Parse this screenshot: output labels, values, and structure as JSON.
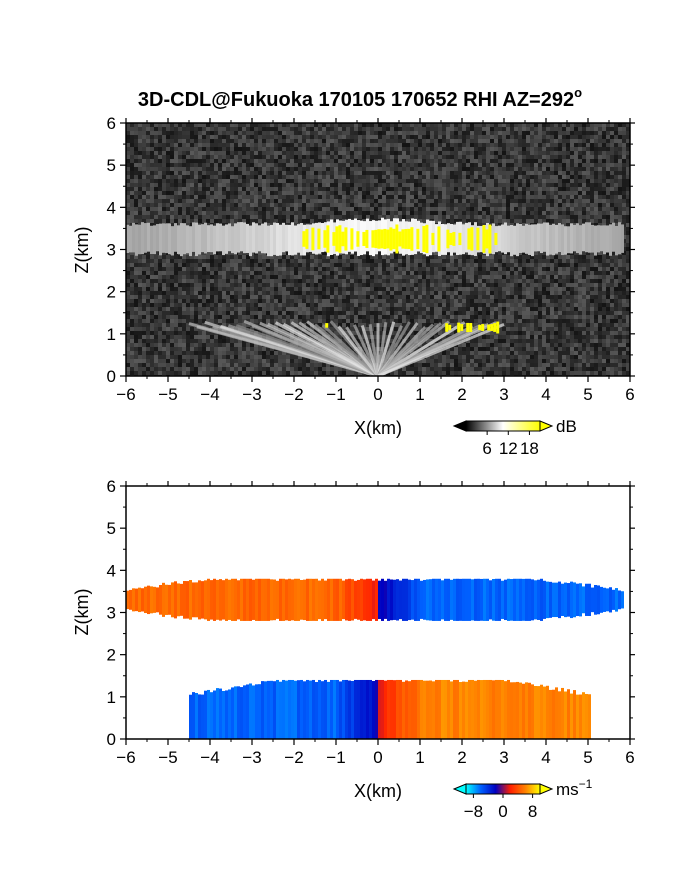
{
  "title": "3D-CDL@Fukuoka 170105 170652 RHI AZ=292",
  "title_degree": "o",
  "chart_data": [
    {
      "type": "heatmap",
      "quantity": "reflectivity",
      "xlabel": "X(km)",
      "ylabel": "Z(km)",
      "xlim": [
        -6,
        6
      ],
      "ylim": [
        0,
        6
      ],
      "xticks": [
        "-6",
        "-5",
        "-4",
        "-3",
        "-2",
        "-1",
        "0",
        "1",
        "2",
        "3",
        "4",
        "5",
        "6"
      ],
      "yticks": [
        "0",
        "1",
        "2",
        "3",
        "4",
        "5",
        "6"
      ],
      "colorbar": {
        "unit": "dB",
        "ticks": [
          "6",
          "12",
          "18"
        ],
        "tick_values": [
          6,
          12,
          18
        ],
        "range": [
          0,
          21
        ],
        "colors": [
          "#000000",
          "#ffffff",
          "#ffff00"
        ]
      },
      "layers": [
        {
          "z_base": 2.9,
          "z_top": 3.6,
          "x_range": [
            -6,
            5.8
          ],
          "peak_x": 0
        }
      ],
      "ground_fan": {
        "z_top": 1.3,
        "x_range": [
          -4.5,
          3
        ]
      },
      "strong_echo_patches": [
        {
          "x": [
            -1.8,
            2.8
          ],
          "z": [
            2.9,
            3.6
          ]
        },
        {
          "x": [
            -1.4,
            -1.2
          ],
          "z": [
            1.1,
            1.3
          ]
        },
        {
          "x": [
            1.6,
            2.9
          ],
          "z": [
            1.0,
            1.3
          ]
        }
      ]
    },
    {
      "type": "heatmap",
      "quantity": "doppler velocity",
      "xlabel": "X(km)",
      "ylabel": "Z(km)",
      "xlim": [
        -6,
        6
      ],
      "ylim": [
        0,
        6
      ],
      "xticks": [
        "-6",
        "-5",
        "-4",
        "-3",
        "-2",
        "-1",
        "0",
        "1",
        "2",
        "3",
        "4",
        "5",
        "6"
      ],
      "yticks": [
        "0",
        "1",
        "2",
        "3",
        "4",
        "5",
        "6"
      ],
      "colorbar": {
        "unit": "ms",
        "unit_exponent": "-1",
        "ticks": [
          "-8",
          "0",
          "8"
        ],
        "tick_values": [
          -8,
          0,
          8
        ],
        "range": [
          -10,
          10
        ],
        "colors": [
          "#00ffff",
          "#0060ff",
          "#0000c0",
          "#ff2000",
          "#ff8000",
          "#ffff00"
        ]
      },
      "layers": [
        {
          "name": "upper",
          "z_base": 2.8,
          "z_top": 3.8,
          "x_range": [
            -6,
            5.8
          ],
          "left_velocity": 5,
          "right_velocity": -6
        },
        {
          "name": "lower",
          "z_base": 0,
          "z_top": 1.4,
          "x_range": [
            -4.5,
            5
          ],
          "left_velocity": -6,
          "right_velocity": 6
        }
      ]
    }
  ]
}
